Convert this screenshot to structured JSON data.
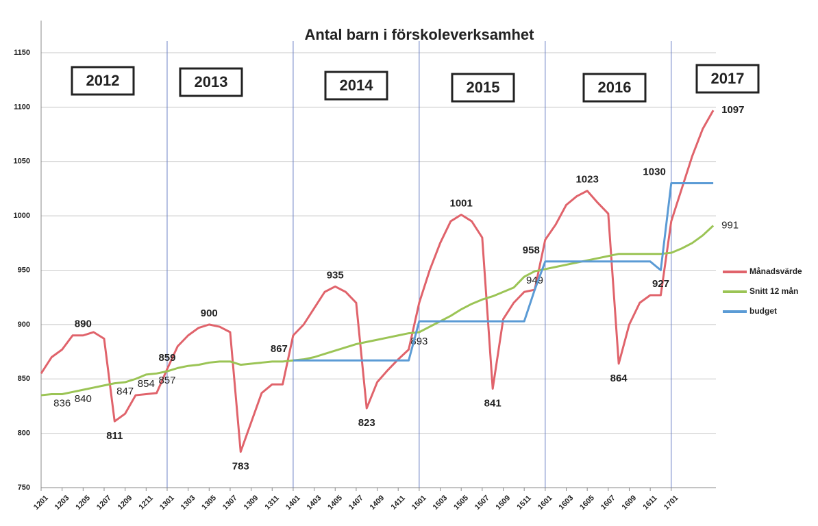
{
  "chart_data": {
    "type": "line",
    "title": "Antal barn i förskoleverksamhet",
    "categories": [
      "1201",
      null,
      "1203",
      null,
      "1205",
      null,
      "1207",
      null,
      "1209",
      null,
      "1211",
      null,
      "1301",
      null,
      "1303",
      null,
      "1305",
      null,
      "1307",
      null,
      "1309",
      null,
      "1311",
      null,
      "1401",
      null,
      "1403",
      null,
      "1405",
      null,
      "1407",
      null,
      "1409",
      null,
      "1411",
      null,
      "1501",
      null,
      "1503",
      null,
      "1505",
      null,
      "1507",
      null,
      "1509",
      null,
      "1511",
      null,
      "1601",
      null,
      "1603",
      null,
      "1605",
      null,
      "1607",
      null,
      "1609",
      null,
      "1611",
      null,
      "1701",
      null,
      null,
      null,
      null
    ],
    "series": [
      {
        "name": "Månadsvärde",
        "color": "#e0636b",
        "values": [
          855,
          870,
          877,
          890,
          890,
          893,
          887,
          811,
          818,
          835,
          836,
          837,
          859,
          880,
          890,
          897,
          900,
          898,
          893,
          783,
          810,
          837,
          845,
          845,
          890,
          900,
          915,
          930,
          935,
          930,
          920,
          823,
          847,
          858,
          868,
          877,
          920,
          950,
          975,
          995,
          1001,
          995,
          980,
          841,
          905,
          920,
          930,
          932,
          978,
          992,
          1010,
          1018,
          1023,
          1012,
          1002,
          864,
          900,
          920,
          927,
          927,
          995,
          1025,
          1055,
          1080,
          1097
        ],
        "value_labels": [
          null,
          null,
          null,
          null,
          "890",
          null,
          null,
          "811",
          null,
          null,
          null,
          null,
          "859",
          null,
          null,
          null,
          "900",
          null,
          null,
          "783",
          null,
          null,
          null,
          null,
          null,
          null,
          null,
          null,
          "935",
          null,
          null,
          "823",
          null,
          null,
          null,
          null,
          null,
          null,
          null,
          null,
          "1001",
          null,
          null,
          "841",
          null,
          null,
          null,
          null,
          null,
          null,
          null,
          null,
          "1023",
          null,
          null,
          "864",
          null,
          null,
          null,
          "927",
          null,
          null,
          null,
          null,
          "1097"
        ]
      },
      {
        "name": "Snitt 12 mån",
        "color": "#9bc455",
        "values": [
          835,
          836,
          836,
          838,
          840,
          842,
          844,
          846,
          847,
          850,
          854,
          855,
          857,
          860,
          862,
          863,
          865,
          866,
          866,
          863,
          864,
          865,
          866,
          866,
          867,
          868,
          870,
          873,
          876,
          879,
          882,
          884,
          886,
          888,
          890,
          892,
          893,
          898,
          903,
          908,
          914,
          919,
          923,
          926,
          930,
          934,
          944,
          949,
          951,
          953,
          955,
          957,
          959,
          961,
          963,
          965,
          965,
          965,
          965,
          965,
          966,
          970,
          975,
          982,
          991
        ],
        "value_labels": [
          null,
          null,
          "836",
          null,
          "840",
          null,
          null,
          null,
          "847",
          null,
          "854",
          null,
          "857",
          null,
          null,
          null,
          null,
          null,
          null,
          null,
          null,
          null,
          null,
          null,
          null,
          null,
          null,
          null,
          null,
          null,
          null,
          null,
          null,
          null,
          null,
          null,
          "893",
          null,
          null,
          null,
          null,
          null,
          null,
          null,
          null,
          null,
          null,
          "949",
          null,
          null,
          null,
          null,
          null,
          null,
          null,
          null,
          null,
          null,
          null,
          null,
          null,
          null,
          null,
          null,
          "991"
        ]
      },
      {
        "name": "budget",
        "color": "#5b9bd5",
        "values": [
          null,
          null,
          null,
          null,
          null,
          null,
          null,
          null,
          null,
          null,
          null,
          null,
          null,
          null,
          null,
          null,
          null,
          null,
          null,
          null,
          null,
          null,
          null,
          null,
          867,
          867,
          867,
          867,
          867,
          867,
          867,
          867,
          867,
          867,
          867,
          867,
          903,
          903,
          903,
          903,
          903,
          903,
          903,
          903,
          903,
          903,
          903,
          932,
          958,
          958,
          958,
          958,
          958,
          958,
          958,
          958,
          958,
          958,
          958,
          950,
          1030,
          1030,
          1030,
          1030,
          1030
        ],
        "value_labels": [
          null,
          null,
          null,
          null,
          null,
          null,
          null,
          null,
          null,
          null,
          null,
          null,
          null,
          null,
          null,
          null,
          null,
          null,
          null,
          null,
          null,
          null,
          null,
          null,
          "867",
          null,
          null,
          null,
          null,
          null,
          null,
          null,
          null,
          null,
          null,
          null,
          null,
          null,
          null,
          null,
          null,
          null,
          null,
          null,
          null,
          null,
          null,
          null,
          "958",
          null,
          null,
          null,
          null,
          null,
          null,
          null,
          null,
          null,
          null,
          null,
          "1030",
          null,
          null,
          null,
          null
        ]
      }
    ],
    "annotations": [
      "2012",
      "2013",
      "2014",
      "2015",
      "2016",
      "2017"
    ],
    "ylim": [
      750,
      1150
    ],
    "yticks": [
      750,
      800,
      850,
      900,
      950,
      1000,
      1050,
      1100,
      1150
    ],
    "grid": true
  }
}
